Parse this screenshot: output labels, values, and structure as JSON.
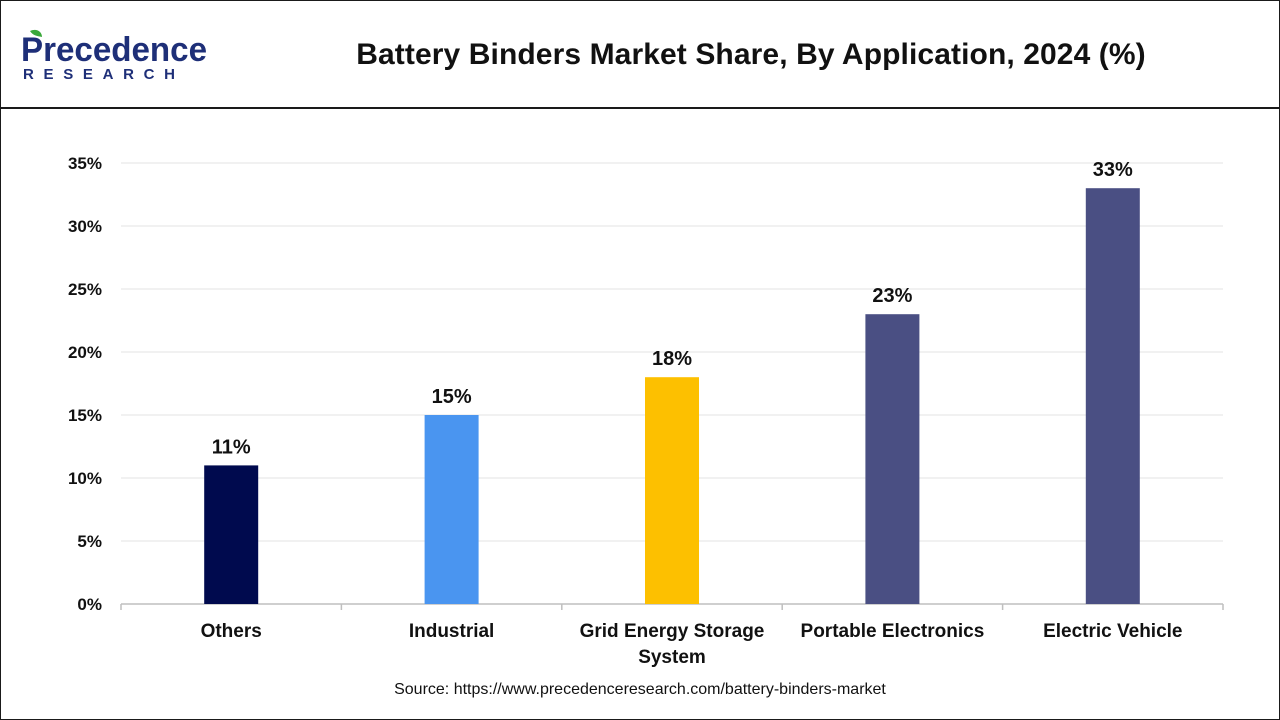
{
  "brand": {
    "name_top": "Precedence",
    "name_bottom": "RESEARCH",
    "colors": {
      "primary": "#1e2f78",
      "accent": "#3aa83a"
    }
  },
  "title": "Battery Binders Market Share, By Application, 2024 (%)",
  "source": "Source: https://www.precedenceresearch.com/battery-binders-market",
  "chart_data": {
    "type": "bar",
    "title": "Battery Binders Market Share, By Application, 2024 (%)",
    "categories": [
      "Others",
      "Industrial",
      "Grid Energy Storage System",
      "Portable Electronics",
      "Electric Vehicle"
    ],
    "category_lines": [
      [
        "Others"
      ],
      [
        "Industrial"
      ],
      [
        "Grid Energy Storage",
        "System"
      ],
      [
        "Portable Electronics"
      ],
      [
        "Electric Vehicle"
      ]
    ],
    "values": [
      11,
      15,
      18,
      23,
      33
    ],
    "data_labels": [
      "11%",
      "15%",
      "18%",
      "23%",
      "33%"
    ],
    "colors": [
      "#000a4e",
      "#4a95f0",
      "#fdc000",
      "#4a4f83",
      "#4a4f83"
    ],
    "ylim": [
      0,
      35
    ],
    "yticks": [
      0,
      5,
      10,
      15,
      20,
      25,
      30,
      35
    ],
    "ytick_labels": [
      "0%",
      "5%",
      "10%",
      "15%",
      "20%",
      "25%",
      "30%",
      "35%"
    ],
    "xlabel": "",
    "ylabel": "",
    "grid": true,
    "legend": "none"
  }
}
